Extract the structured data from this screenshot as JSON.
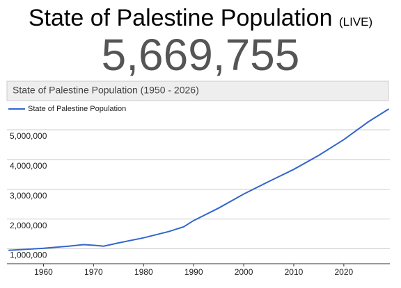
{
  "header": {
    "title": "State of Palestine Population",
    "live": "(LIVE)",
    "counter": "5,669,755"
  },
  "chart_data": {
    "type": "line",
    "title": "State of Palestine Population (1950 - 2026)",
    "x": [
      1953,
      1960,
      1965,
      1968,
      1970,
      1972,
      1975,
      1980,
      1985,
      1988,
      1990,
      1995,
      2000,
      2005,
      2010,
      2015,
      2020,
      2025,
      2029
    ],
    "series": [
      {
        "name": "State of Palestine Population",
        "color": "#3366cc",
        "values": [
          950000,
          1020000,
          1090000,
          1140000,
          1120000,
          1090000,
          1200000,
          1370000,
          1580000,
          1740000,
          1950000,
          2370000,
          2840000,
          3260000,
          3670000,
          4140000,
          4670000,
          5280000,
          5700000
        ]
      }
    ],
    "xlim": [
      1952.7,
      2029.2
    ],
    "xticks": [
      1960,
      1970,
      1980,
      1990,
      2000,
      2010,
      2020
    ],
    "ylim": [
      500000,
      5700000
    ],
    "yticks": [
      {
        "value": 1000000,
        "label": "1,000,000"
      },
      {
        "value": 2000000,
        "label": "2,000,000"
      },
      {
        "value": 3000000,
        "label": "3,000,000"
      },
      {
        "value": 4000000,
        "label": "4,000,000"
      },
      {
        "value": 5000000,
        "label": "5,000,000"
      }
    ],
    "grid": true,
    "legend": "top-left"
  }
}
